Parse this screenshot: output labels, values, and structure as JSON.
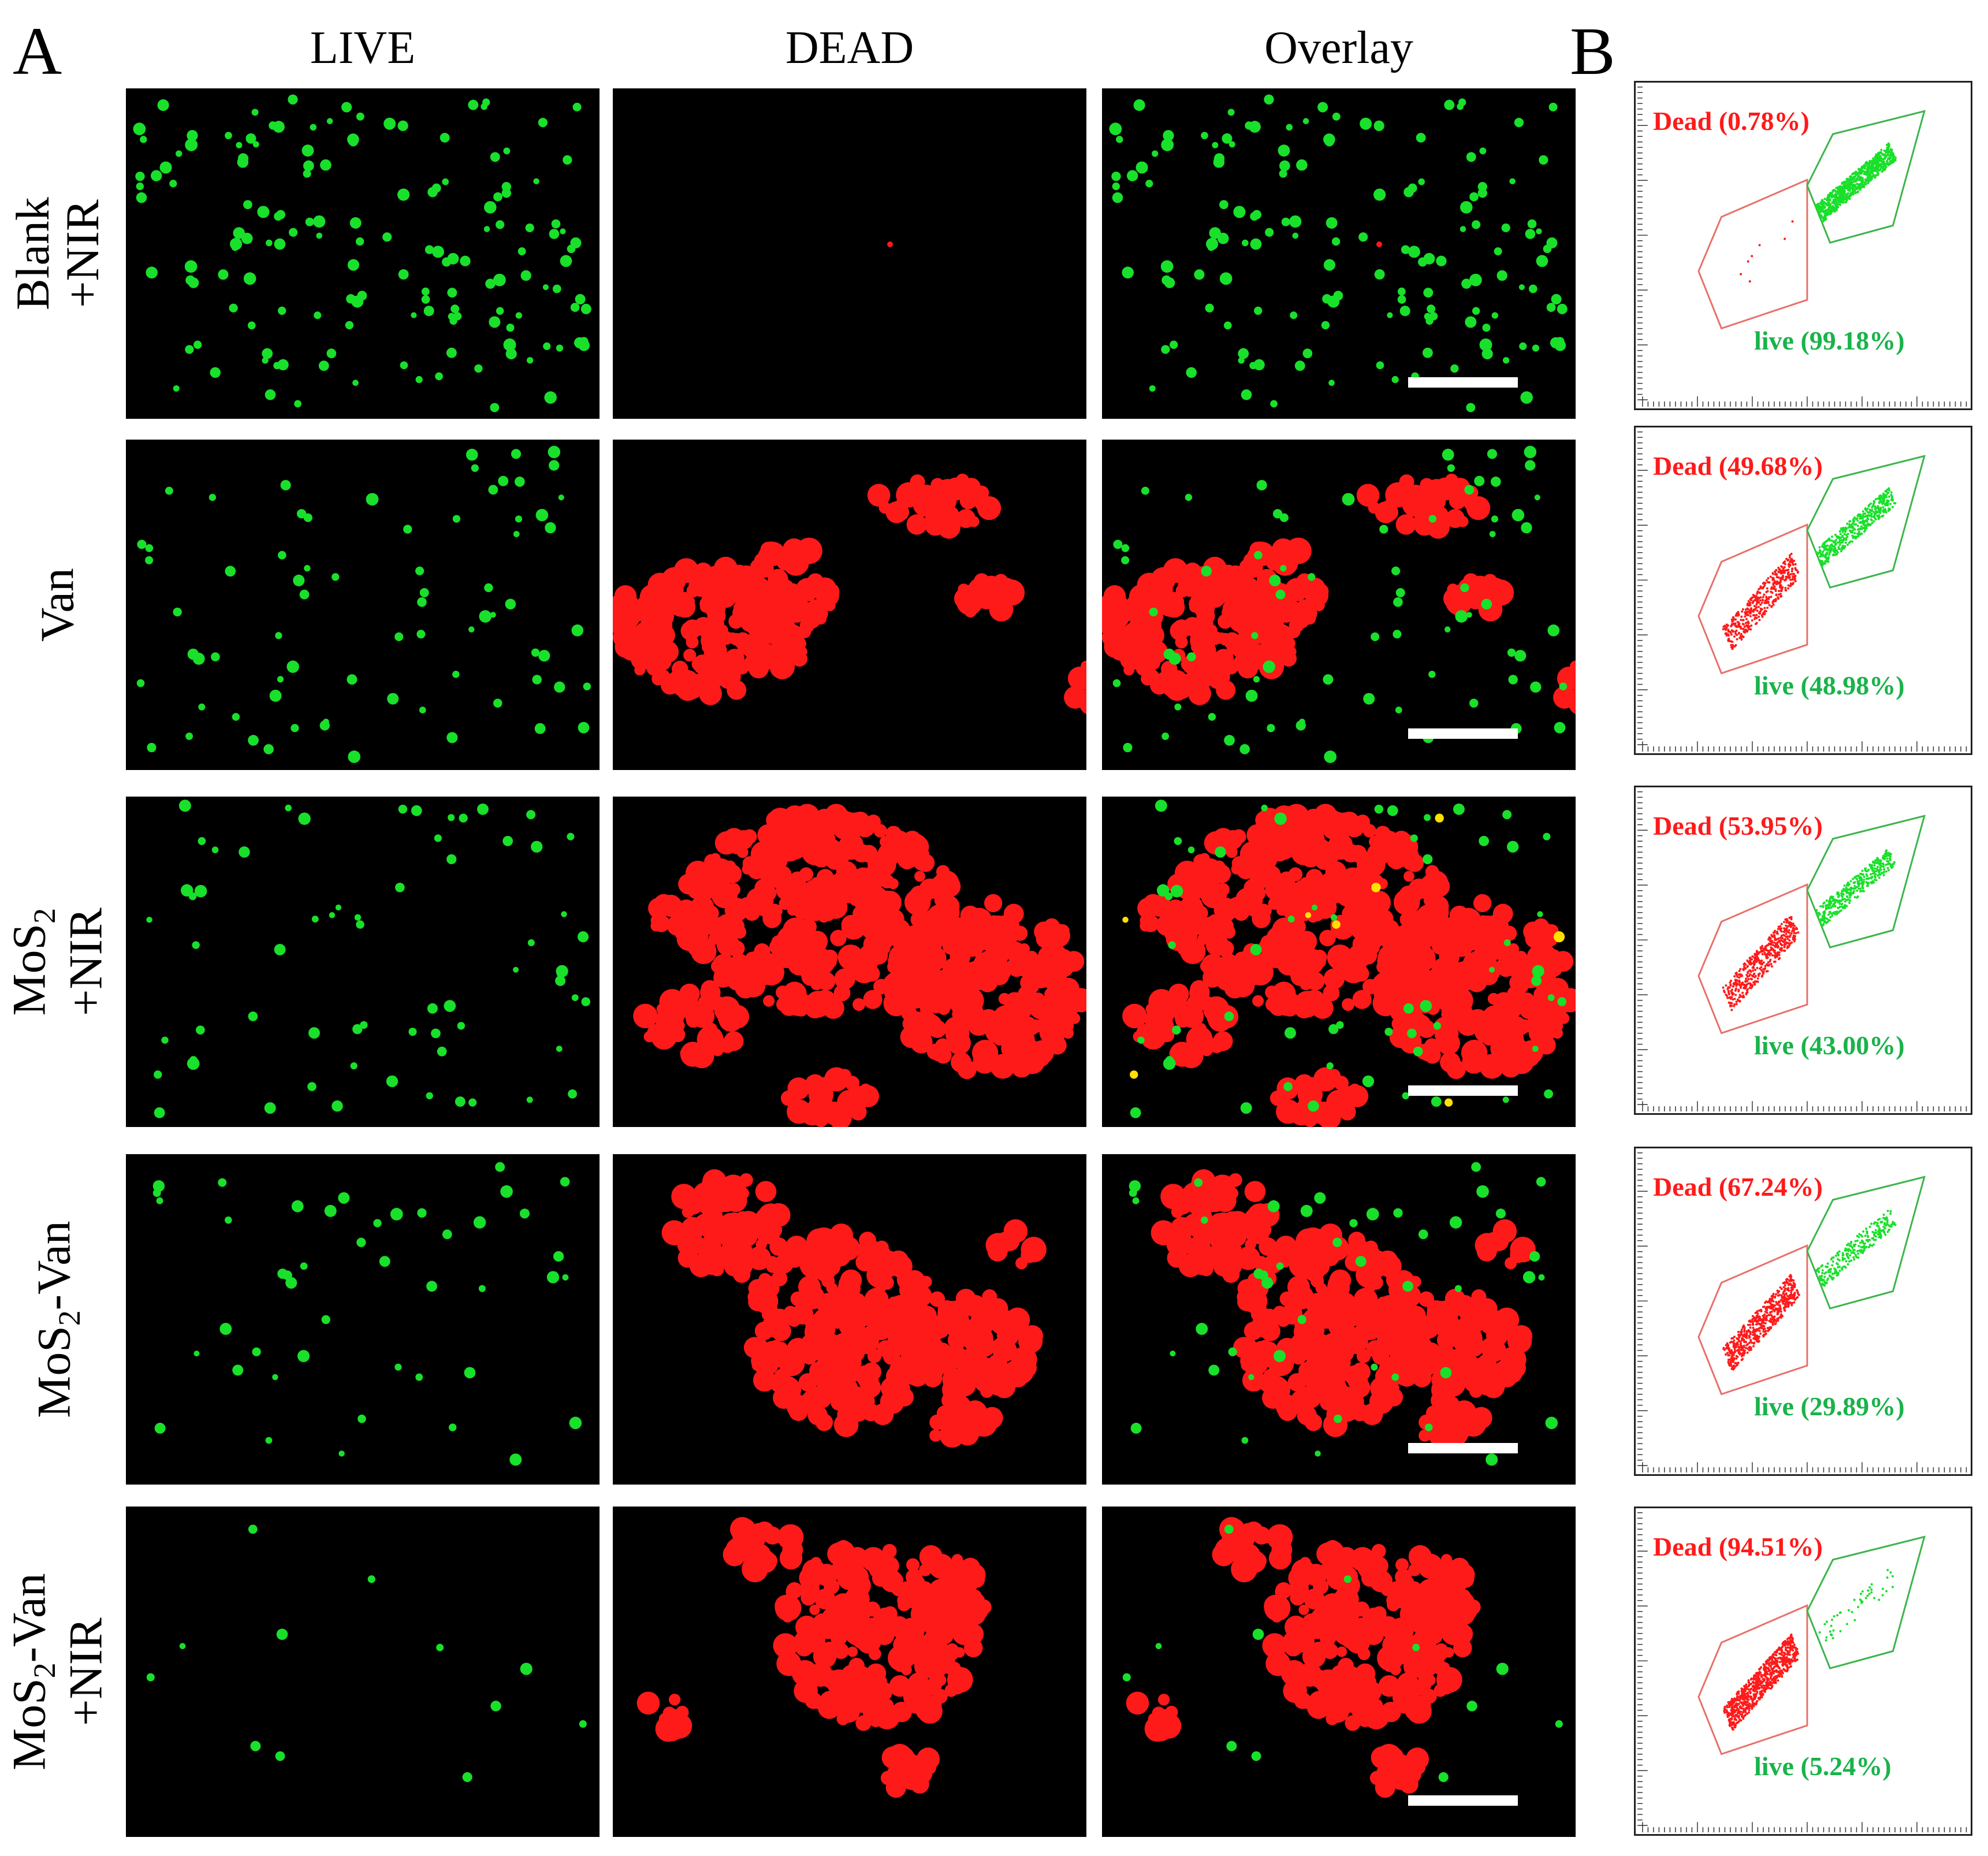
{
  "figure": {
    "panel_a_label": "A",
    "panel_b_label": "B",
    "column_headers": [
      "LIVE",
      "DEAD",
      "Overlay"
    ],
    "colors": {
      "live": "#19e02a",
      "dead": "#ff1a1a",
      "overlap": "#ffe000",
      "dead_gate": "#e8706a",
      "live_gate": "#3ab54a",
      "dead_text": "#ff1a1a",
      "live_text": "#19b34a"
    },
    "rows": [
      {
        "label_line1": "Blank",
        "label_line2": "+NIR",
        "label_sub": "",
        "live_fraction": 0.9918,
        "dead_fraction": 0.0078,
        "dead_label": "Dead (0.78%)",
        "live_label": "live (99.18%)"
      },
      {
        "label_line1": "Van",
        "label_line2": "",
        "label_sub": "",
        "live_fraction": 0.4898,
        "dead_fraction": 0.4968,
        "dead_label": "Dead (49.68%)",
        "live_label": "live (48.98%)"
      },
      {
        "label_line1": "MoS",
        "label_sub": "2",
        "label_after": "",
        "label_line2": "+NIR",
        "live_fraction": 0.43,
        "dead_fraction": 0.5395,
        "dead_label": "Dead (53.95%)",
        "live_label": "live (43.00%)"
      },
      {
        "label_line1": "MoS",
        "label_sub": "2",
        "label_after": "-Van",
        "label_line2": "",
        "live_fraction": 0.2989,
        "dead_fraction": 0.6724,
        "dead_label": "Dead (67.24%)",
        "live_label": "live (29.89%)"
      },
      {
        "label_line1": "MoS",
        "label_sub": "2",
        "label_after": "-Van",
        "label_line2": "+NIR",
        "live_fraction": 0.0524,
        "dead_fraction": 0.9451,
        "dead_label": "Dead (94.51%)",
        "live_label": "live (5.24%)"
      }
    ]
  }
}
